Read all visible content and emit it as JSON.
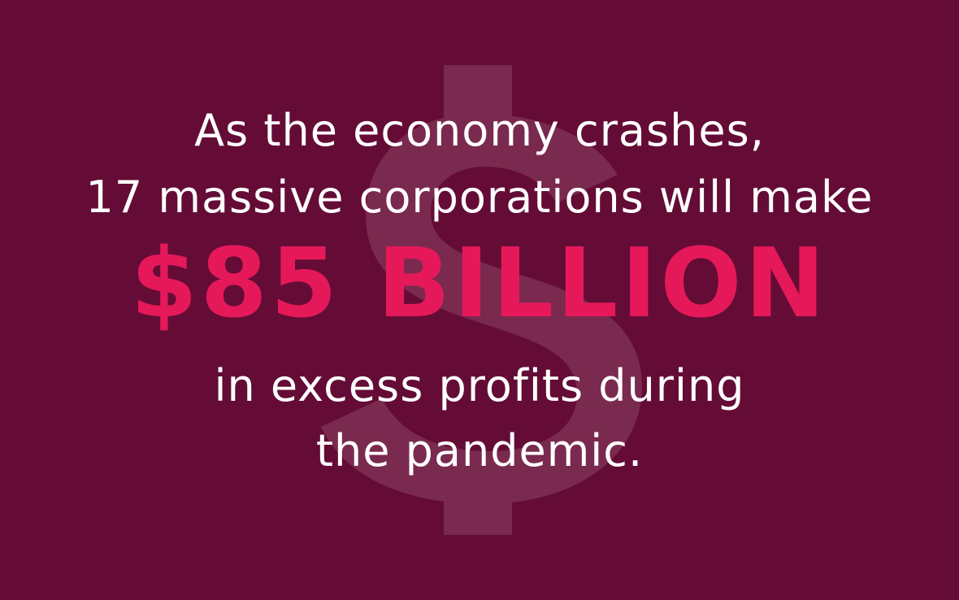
{
  "background_color": "#640c36",
  "icon": "dollar-sign-icon",
  "headline": {
    "line1": "As the economy crashes,",
    "line2": "17 massive corporations will make",
    "amount": "$85 BILLION",
    "line4": "in excess profits during",
    "line5": "the pandemic."
  },
  "colors": {
    "text": "#ffffff",
    "accent": "#e5195a",
    "watermark": "#7a2a4e"
  }
}
